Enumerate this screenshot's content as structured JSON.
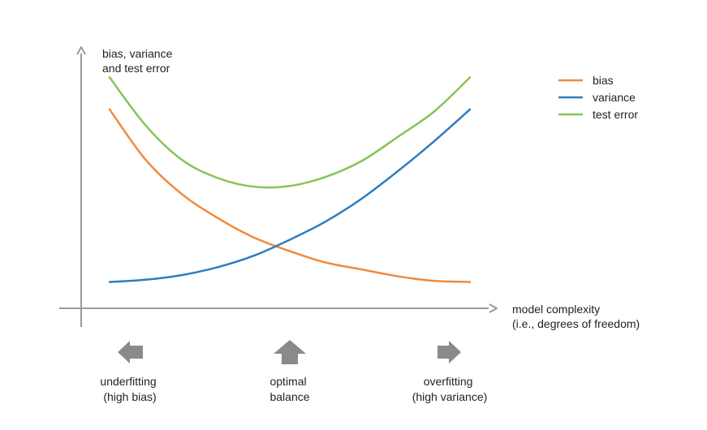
{
  "chart_data": {
    "type": "line",
    "title": "",
    "ylabel": [
      "bias, variance",
      "and test error"
    ],
    "xlabel": [
      "model complexity",
      "(i.e., degrees of freedom)"
    ],
    "x": [
      0,
      1,
      2,
      3,
      4,
      5,
      6,
      7,
      8,
      9,
      10
    ],
    "series": [
      {
        "name": "bias",
        "color": "#f08a3c",
        "values": [
          87,
          65,
          50,
          39.5,
          31,
          25,
          20,
          17,
          14,
          12,
          11.5
        ]
      },
      {
        "name": "variance",
        "color": "#2f7cc0",
        "values": [
          11.5,
          12.5,
          14.5,
          18,
          23,
          30,
          38,
          48,
          60,
          73,
          87
        ]
      },
      {
        "name": "test error",
        "color": "#86c456",
        "values": [
          101,
          80,
          65,
          57,
          53.2,
          53.5,
          57.5,
          64.5,
          75,
          86,
          101
        ]
      }
    ],
    "legend_position": "top-right",
    "grid": false,
    "annotations": [
      {
        "direction": "left",
        "lines": [
          "underfitting",
          "(high bias)"
        ]
      },
      {
        "direction": "up",
        "lines": [
          "optimal",
          "balance"
        ]
      },
      {
        "direction": "right",
        "lines": [
          "overfitting",
          "(high variance)"
        ]
      }
    ],
    "colors": {
      "axis": "#9a9a9a",
      "arrow_icon": "#8a8a8a",
      "text": "#222222"
    }
  }
}
